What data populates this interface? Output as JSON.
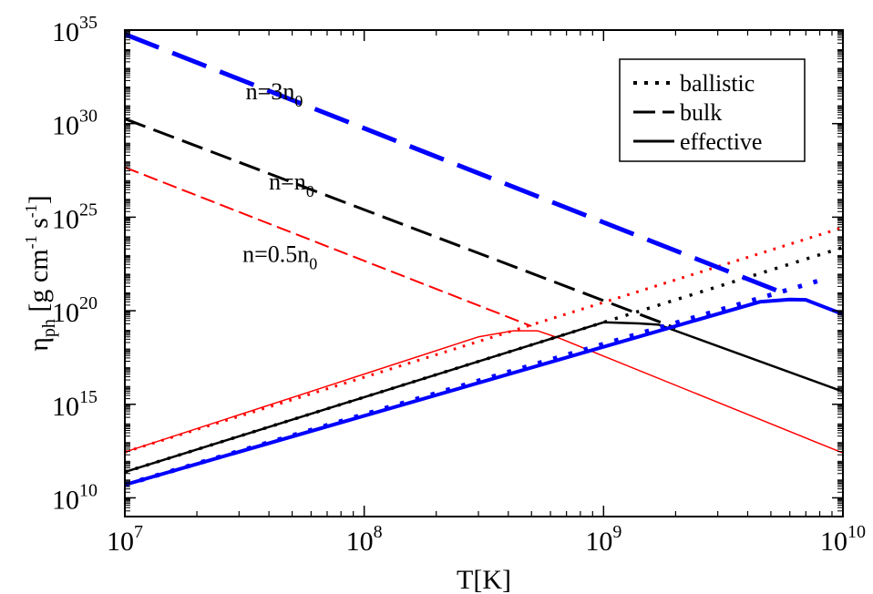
{
  "chart_data": {
    "type": "line",
    "x_scale": "log",
    "y_scale": "log",
    "xlim": [
      10000000.0,
      10000000000.0
    ],
    "ylim": [
      1000000000.0,
      1e+35
    ],
    "x_ticks": [
      {
        "value": 10000000.0,
        "base": "10",
        "exp": "7"
      },
      {
        "value": 100000000.0,
        "base": "10",
        "exp": "8"
      },
      {
        "value": 1000000000.0,
        "base": "10",
        "exp": "9"
      },
      {
        "value": 10000000000.0,
        "base": "10",
        "exp": "10"
      }
    ],
    "y_ticks": [
      {
        "value": 10000000000.0,
        "base": "10",
        "exp": "10"
      },
      {
        "value": 1000000000000000.0,
        "base": "10",
        "exp": "15"
      },
      {
        "value": 1e+20,
        "base": "10",
        "exp": "20"
      },
      {
        "value": 1e+25,
        "base": "10",
        "exp": "25"
      },
      {
        "value": 1e+30,
        "base": "10",
        "exp": "30"
      },
      {
        "value": 1e+35,
        "base": "10",
        "exp": "35"
      }
    ],
    "xlabel": "T[K]",
    "ylabel": {
      "main": "η",
      "sub": "ph",
      "rest": " [g cm",
      "sup1": "-1",
      "mid": " s",
      "sup2": "-1",
      "end": "]"
    },
    "legend": {
      "placement": "top-right",
      "entries": [
        {
          "label": "ballistic",
          "style": "dotted"
        },
        {
          "label": "bulk",
          "style": "dashed"
        },
        {
          "label": "effective",
          "style": "solid"
        }
      ]
    },
    "annotations": [
      {
        "parts": [
          "n=3n",
          "0"
        ],
        "x": 32000000.0,
        "y": 2e+31
      },
      {
        "parts": [
          "n=n",
          "0"
        ],
        "x": 40000000.0,
        "y": 3e+26
      },
      {
        "parts": [
          "n=0.5n",
          "0"
        ],
        "x": 31000000.0,
        "y": 4e+22
      }
    ],
    "series": [
      {
        "color": "#ff0000",
        "style": "dotted",
        "width": 3,
        "points": [
          [
            10000000.0,
            2800000000000.0
          ],
          [
            10000000000.0,
            2.8e+24
          ]
        ]
      },
      {
        "color": "#ff0000",
        "style": "dashed",
        "width": 2,
        "points": [
          [
            10000000.0,
            4.6e+27
          ],
          [
            500000000.0,
            1.5e+19
          ]
        ]
      },
      {
        "color": "#ff0000",
        "style": "solid",
        "width": 1.5,
        "points": [
          [
            10000000.0,
            2800000000000.0
          ],
          [
            300000000.0,
            4e+18
          ],
          [
            420000000.0,
            8.5e+18
          ],
          [
            530000000.0,
            8.5e+18
          ],
          [
            650000000.0,
            3.5e+18
          ],
          [
            10000000000.0,
            2500000000000.0
          ]
        ]
      },
      {
        "color": "#000000",
        "style": "dotted",
        "width": 3.5,
        "points": [
          [
            10000000.0,
            240000000000.0
          ],
          [
            10000000000.0,
            2.4e+23
          ]
        ]
      },
      {
        "color": "#000000",
        "style": "dashed",
        "width": 3,
        "points": [
          [
            10000000.0,
            1.8e+30
          ],
          [
            2000000000.0,
            1.2e+19
          ]
        ]
      },
      {
        "color": "#000000",
        "style": "solid",
        "width": 2.5,
        "points": [
          [
            10000000.0,
            240000000000.0
          ],
          [
            1000000000.0,
            2.4e+19
          ],
          [
            1400000000.0,
            2.1e+19
          ],
          [
            1700000000.0,
            1.8e+19
          ],
          [
            10000000000.0,
            4800000000000000.0
          ]
        ]
      },
      {
        "color": "#0000ff",
        "style": "dotted",
        "width": 5,
        "points": [
          [
            10000000.0,
            50000000000.0
          ],
          [
            8500000000.0,
            5.2e+21
          ]
        ]
      },
      {
        "color": "#0000ff",
        "style": "dashed",
        "width": 5,
        "points": [
          [
            10000000.0,
            6e+34
          ],
          [
            5500000000.0,
            1e+21
          ]
        ]
      },
      {
        "color": "#0000ff",
        "style": "solid",
        "width": 4,
        "points": [
          [
            10000000.0,
            50000000000.0
          ],
          [
            4500000000.0,
            3e+20
          ],
          [
            6000000000.0,
            4e+20
          ],
          [
            7000000000.0,
            3.8e+20
          ],
          [
            10000000000.0,
            6.5e+19
          ]
        ]
      }
    ]
  }
}
